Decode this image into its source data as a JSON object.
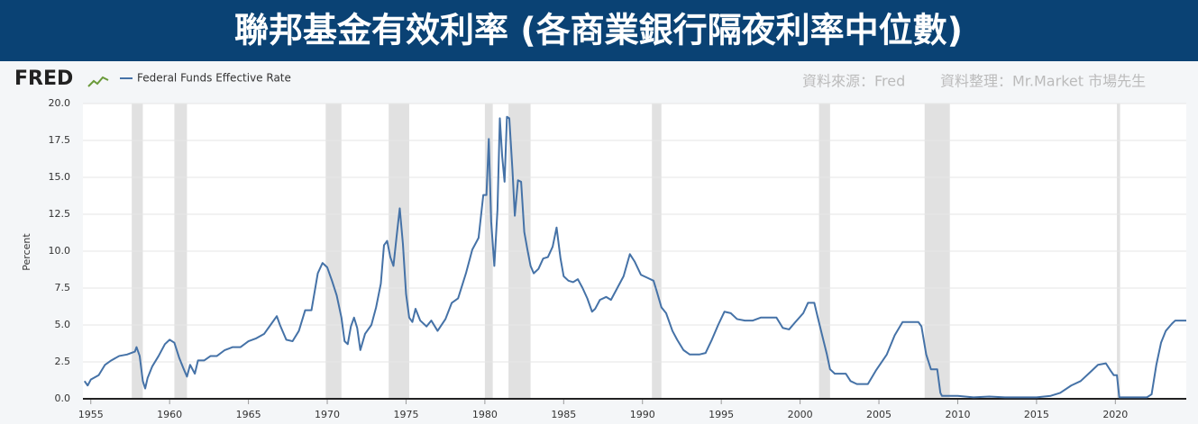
{
  "chart_data": {
    "type": "line",
    "title": "聯邦基金有效利率 (各商業銀行隔夜利率中位數)",
    "logo": "FRED",
    "source_note": "資料來源：Fred",
    "credit_note": "資料整理：Mr.Market 市場先生",
    "y_label": "Percent",
    "xlim": [
      1954.5,
      2024.5
    ],
    "xticks": [
      1955,
      1960,
      1965,
      1970,
      1975,
      1980,
      1985,
      1990,
      1995,
      2000,
      2005,
      2010,
      2015,
      2020
    ],
    "ylim": [
      0,
      20
    ],
    "yticks": [
      {
        "value": 0,
        "label": "0.0"
      },
      2.5,
      {
        "value": 5,
        "label": "5.0"
      },
      7.5,
      {
        "value": 10,
        "label": "10.0"
      },
      12.5,
      {
        "value": 15,
        "label": "15.0"
      },
      17.5,
      {
        "value": 20,
        "label": "20.0"
      }
    ],
    "grid": true,
    "shading_color": "#e1e1e1",
    "recessions": [
      [
        1957.6,
        1958.3
      ],
      [
        1960.3,
        1961.1
      ],
      [
        1969.9,
        1970.9
      ],
      [
        1973.9,
        1975.2
      ],
      [
        1980.0,
        1980.5
      ],
      [
        1981.5,
        1982.9
      ],
      [
        1990.6,
        1991.2
      ],
      [
        2001.2,
        2001.9
      ],
      [
        2007.9,
        2009.5
      ],
      [
        2020.1,
        2020.3
      ]
    ],
    "x": [
      1954.6,
      1954.8,
      1955.0,
      1955.5,
      1955.9,
      1956.3,
      1956.8,
      1957.3,
      1957.8,
      1957.9,
      1958.1,
      1958.3,
      1958.45,
      1958.6,
      1958.9,
      1959.3,
      1959.7,
      1960.0,
      1960.3,
      1960.6,
      1960.9,
      1961.1,
      1961.3,
      1961.6,
      1961.8,
      1962.2,
      1962.6,
      1963.0,
      1963.5,
      1964.0,
      1964.5,
      1965.0,
      1965.5,
      1966.0,
      1966.4,
      1966.8,
      1967.0,
      1967.4,
      1967.8,
      1968.2,
      1968.6,
      1969.0,
      1969.4,
      1969.7,
      1970.0,
      1970.3,
      1970.6,
      1970.9,
      1971.1,
      1971.3,
      1971.5,
      1971.7,
      1971.9,
      1972.1,
      1972.4,
      1972.8,
      1973.1,
      1973.4,
      1973.6,
      1973.8,
      1974.0,
      1974.2,
      1974.4,
      1974.6,
      1974.8,
      1975.0,
      1975.2,
      1975.4,
      1975.6,
      1975.9,
      1976.3,
      1976.6,
      1977.0,
      1977.5,
      1977.9,
      1978.3,
      1978.8,
      1979.2,
      1979.6,
      1979.9,
      1980.1,
      1980.25,
      1980.4,
      1980.6,
      1980.8,
      1980.95,
      1981.1,
      1981.25,
      1981.4,
      1981.55,
      1981.75,
      1981.9,
      1982.1,
      1982.3,
      1982.5,
      1982.7,
      1982.9,
      1983.1,
      1983.4,
      1983.7,
      1984.0,
      1984.3,
      1984.55,
      1984.8,
      1985.0,
      1985.3,
      1985.6,
      1985.9,
      1986.2,
      1986.5,
      1986.8,
      1987.0,
      1987.3,
      1987.7,
      1988.0,
      1988.4,
      1988.8,
      1989.2,
      1989.5,
      1989.9,
      1990.3,
      1990.7,
      1990.9,
      1991.2,
      1991.5,
      1991.9,
      1992.2,
      1992.6,
      1993.0,
      1993.6,
      1994.0,
      1994.4,
      1994.8,
      1995.2,
      1995.6,
      1996.0,
      1996.5,
      1997.0,
      1997.5,
      1998.0,
      1998.5,
      1998.9,
      1999.3,
      1999.7,
      2000.2,
      2000.5,
      2000.9,
      2001.1,
      2001.4,
      2001.7,
      2001.9,
      2002.2,
      2002.9,
      2003.2,
      2003.6,
      2004.3,
      2004.8,
      2005.5,
      2006.0,
      2006.5,
      2007.5,
      2007.7,
      2008.0,
      2008.3,
      2008.7,
      2008.9,
      2009.0,
      2010.0,
      2011.0,
      2012.0,
      2013.0,
      2014.0,
      2015.0,
      2015.9,
      2016.5,
      2017.2,
      2017.8,
      2018.4,
      2018.9,
      2019.4,
      2019.7,
      2019.9,
      2020.1,
      2020.25,
      2021.0,
      2022.0,
      2022.3,
      2022.6,
      2022.9,
      2023.2,
      2023.6,
      2023.8,
      2024.5
    ],
    "series": [
      {
        "name": "Federal Funds Effective Rate",
        "color": "#4572a7",
        "values": [
          1.2,
          0.9,
          1.3,
          1.6,
          2.3,
          2.6,
          2.9,
          3.0,
          3.2,
          3.5,
          2.9,
          1.2,
          0.7,
          1.4,
          2.2,
          2.9,
          3.7,
          4.0,
          3.8,
          2.8,
          2.0,
          1.5,
          2.3,
          1.7,
          2.6,
          2.6,
          2.9,
          2.9,
          3.3,
          3.5,
          3.5,
          3.9,
          4.1,
          4.4,
          5.0,
          5.6,
          5.0,
          4.0,
          3.9,
          4.6,
          6.0,
          6.0,
          8.5,
          9.2,
          8.9,
          8.0,
          7.0,
          5.5,
          3.9,
          3.7,
          4.9,
          5.5,
          4.8,
          3.3,
          4.4,
          5.0,
          6.2,
          7.8,
          10.4,
          10.7,
          9.6,
          9.0,
          11.0,
          12.9,
          10.5,
          7.1,
          5.5,
          5.2,
          6.1,
          5.3,
          4.9,
          5.3,
          4.6,
          5.4,
          6.5,
          6.8,
          8.5,
          10.1,
          10.9,
          13.8,
          13.8,
          17.6,
          12.0,
          9.0,
          12.8,
          19.0,
          16.4,
          14.7,
          19.1,
          19.0,
          15.5,
          12.4,
          14.8,
          14.7,
          11.3,
          10.1,
          9.0,
          8.5,
          8.8,
          9.5,
          9.6,
          10.3,
          11.6,
          9.5,
          8.3,
          8.0,
          7.9,
          8.1,
          7.5,
          6.8,
          5.9,
          6.1,
          6.7,
          6.9,
          6.7,
          7.5,
          8.3,
          9.8,
          9.3,
          8.4,
          8.2,
          8.0,
          7.3,
          6.2,
          5.8,
          4.6,
          4.0,
          3.3,
          3.0,
          3.0,
          3.1,
          4.0,
          5.0,
          5.9,
          5.8,
          5.4,
          5.3,
          5.3,
          5.5,
          5.5,
          5.5,
          4.8,
          4.7,
          5.2,
          5.8,
          6.5,
          6.5,
          5.6,
          4.3,
          3.0,
          2.0,
          1.7,
          1.7,
          1.2,
          1.0,
          1.0,
          1.9,
          3.0,
          4.3,
          5.2,
          5.2,
          4.9,
          3.0,
          2.0,
          2.0,
          0.4,
          0.2,
          0.2,
          0.1,
          0.15,
          0.1,
          0.1,
          0.1,
          0.2,
          0.4,
          0.9,
          1.2,
          1.8,
          2.3,
          2.4,
          1.9,
          1.6,
          1.6,
          0.1,
          0.1,
          0.1,
          0.3,
          2.3,
          3.8,
          4.6,
          5.1,
          5.3,
          5.3
        ]
      }
    ]
  }
}
